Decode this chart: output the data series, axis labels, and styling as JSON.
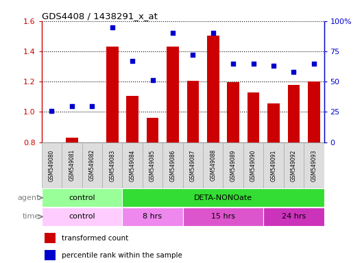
{
  "title": "GDS4408 / 1438291_x_at",
  "samples": [
    "GSM549080",
    "GSM549081",
    "GSM549082",
    "GSM549083",
    "GSM549084",
    "GSM549085",
    "GSM549086",
    "GSM549087",
    "GSM549088",
    "GSM549089",
    "GSM549090",
    "GSM549091",
    "GSM549092",
    "GSM549093"
  ],
  "bar_values": [
    0.8,
    0.83,
    0.8,
    1.43,
    1.108,
    0.96,
    1.43,
    1.205,
    1.505,
    1.195,
    1.13,
    1.055,
    1.178,
    1.2
  ],
  "scatter_values": [
    26,
    30,
    30,
    95,
    67,
    51,
    90,
    72,
    90,
    65,
    65,
    63,
    58,
    65
  ],
  "bar_color": "#CC0000",
  "scatter_color": "#0000CC",
  "ylim_left": [
    0.8,
    1.6
  ],
  "ylim_right": [
    0,
    100
  ],
  "yticks_left": [
    0.8,
    1.0,
    1.2,
    1.4,
    1.6
  ],
  "ytick_labels_left": [
    "0.8",
    "1.0",
    "1.2",
    "1.4",
    "1.6"
  ],
  "yticks_right": [
    0,
    25,
    50,
    75,
    100
  ],
  "ytick_labels_right": [
    "0",
    "25",
    "50",
    "75",
    "100%"
  ],
  "agent_groups": [
    {
      "label": "control",
      "start": 0,
      "end": 4,
      "color": "#99FF99"
    },
    {
      "label": "DETA-NONOate",
      "start": 4,
      "end": 14,
      "color": "#33DD33"
    }
  ],
  "time_colors": [
    "#FFCCFF",
    "#EE88EE",
    "#DD55CC",
    "#CC33BB"
  ],
  "time_groups": [
    {
      "label": "control",
      "start": 0,
      "end": 4
    },
    {
      "label": "8 hrs",
      "start": 4,
      "end": 7
    },
    {
      "label": "15 hrs",
      "start": 7,
      "end": 11
    },
    {
      "label": "24 hrs",
      "start": 11,
      "end": 14
    }
  ],
  "legend_bar_label": "transformed count",
  "legend_scatter_label": "percentile rank within the sample",
  "agent_label": "agent",
  "time_label": "time",
  "sample_box_color": "#DDDDDD",
  "sample_box_edge": "#AAAAAA"
}
